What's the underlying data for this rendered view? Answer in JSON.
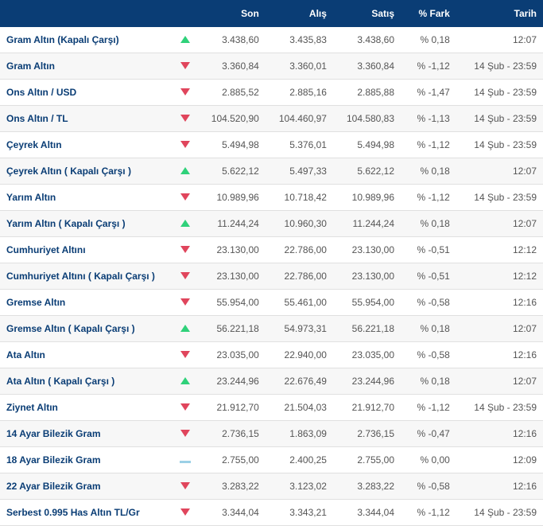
{
  "header": {
    "name": "",
    "son": "Son",
    "alis": "Alış",
    "satis": "Satış",
    "fark": "% Fark",
    "tarih": "Tarih"
  },
  "rows": [
    {
      "name": "Gram Altın (Kapalı Çarşı)",
      "trend": "up",
      "son": "3.438,60",
      "alis": "3.435,83",
      "satis": "3.438,60",
      "fark": "% 0,18",
      "tarih": "12:07"
    },
    {
      "name": "Gram Altın",
      "trend": "down",
      "son": "3.360,84",
      "alis": "3.360,01",
      "satis": "3.360,84",
      "fark": "% -1,12",
      "tarih": "14 Şub - 23:59"
    },
    {
      "name": "Ons Altın / USD",
      "trend": "down",
      "son": "2.885,52",
      "alis": "2.885,16",
      "satis": "2.885,88",
      "fark": "% -1,47",
      "tarih": "14 Şub - 23:59"
    },
    {
      "name": "Ons Altın / TL",
      "trend": "down",
      "son": "104.520,90",
      "alis": "104.460,97",
      "satis": "104.580,83",
      "fark": "% -1,13",
      "tarih": "14 Şub - 23:59"
    },
    {
      "name": "Çeyrek Altın",
      "trend": "down",
      "son": "5.494,98",
      "alis": "5.376,01",
      "satis": "5.494,98",
      "fark": "% -1,12",
      "tarih": "14 Şub - 23:59"
    },
    {
      "name": "Çeyrek Altın ( Kapalı Çarşı )",
      "trend": "up",
      "son": "5.622,12",
      "alis": "5.497,33",
      "satis": "5.622,12",
      "fark": "% 0,18",
      "tarih": "12:07"
    },
    {
      "name": "Yarım Altın",
      "trend": "down",
      "son": "10.989,96",
      "alis": "10.718,42",
      "satis": "10.989,96",
      "fark": "% -1,12",
      "tarih": "14 Şub - 23:59"
    },
    {
      "name": "Yarım Altın ( Kapalı Çarşı )",
      "trend": "up",
      "son": "11.244,24",
      "alis": "10.960,30",
      "satis": "11.244,24",
      "fark": "% 0,18",
      "tarih": "12:07"
    },
    {
      "name": "Cumhuriyet Altını",
      "trend": "down",
      "son": "23.130,00",
      "alis": "22.786,00",
      "satis": "23.130,00",
      "fark": "% -0,51",
      "tarih": "12:12"
    },
    {
      "name": "Cumhuriyet Altını ( Kapalı Çarşı )",
      "trend": "down",
      "son": "23.130,00",
      "alis": "22.786,00",
      "satis": "23.130,00",
      "fark": "% -0,51",
      "tarih": "12:12"
    },
    {
      "name": "Gremse Altın",
      "trend": "down",
      "son": "55.954,00",
      "alis": "55.461,00",
      "satis": "55.954,00",
      "fark": "% -0,58",
      "tarih": "12:16"
    },
    {
      "name": "Gremse Altın ( Kapalı Çarşı )",
      "trend": "up",
      "son": "56.221,18",
      "alis": "54.973,31",
      "satis": "56.221,18",
      "fark": "% 0,18",
      "tarih": "12:07"
    },
    {
      "name": "Ata Altın",
      "trend": "down",
      "son": "23.035,00",
      "alis": "22.940,00",
      "satis": "23.035,00",
      "fark": "% -0,58",
      "tarih": "12:16"
    },
    {
      "name": "Ata Altın ( Kapalı Çarşı )",
      "trend": "up",
      "son": "23.244,96",
      "alis": "22.676,49",
      "satis": "23.244,96",
      "fark": "% 0,18",
      "tarih": "12:07"
    },
    {
      "name": "Ziynet Altın",
      "trend": "down",
      "son": "21.912,70",
      "alis": "21.504,03",
      "satis": "21.912,70",
      "fark": "% -1,12",
      "tarih": "14 Şub - 23:59"
    },
    {
      "name": "14 Ayar Bilezik Gram",
      "trend": "down",
      "son": "2.736,15",
      "alis": "1.863,09",
      "satis": "2.736,15",
      "fark": "% -0,47",
      "tarih": "12:16"
    },
    {
      "name": "18 Ayar Bilezik Gram",
      "trend": "flat",
      "son": "2.755,00",
      "alis": "2.400,25",
      "satis": "2.755,00",
      "fark": "% 0,00",
      "tarih": "12:09"
    },
    {
      "name": "22 Ayar Bilezik Gram",
      "trend": "down",
      "son": "3.283,22",
      "alis": "3.123,02",
      "satis": "3.283,22",
      "fark": "% -0,58",
      "tarih": "12:16"
    },
    {
      "name": "Serbest 0.995 Has Altın TL/Gr",
      "trend": "down",
      "son": "3.344,04",
      "alis": "3.343,21",
      "satis": "3.344,04",
      "fark": "% -1,12",
      "tarih": "14 Şub - 23:59"
    }
  ]
}
